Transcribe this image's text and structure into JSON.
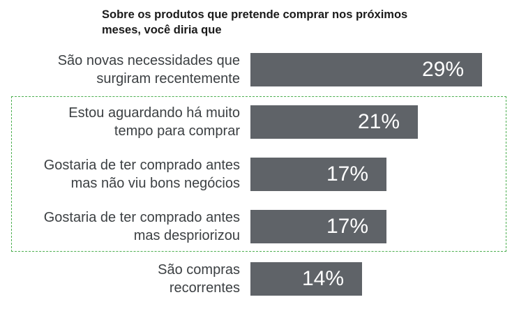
{
  "title": {
    "line1": "Sobre os produtos que pretende comprar nos próximos",
    "line2": "meses, você diria que"
  },
  "accent_colors": {
    "bar": "#5f6368",
    "highlight_border": "#4caf50"
  },
  "chart_data": {
    "type": "bar",
    "orientation": "horizontal",
    "categories": [
      [
        "São novas necessidades que",
        "surgiram recentemente"
      ],
      [
        "Estou aguardando há muito",
        "tempo para comprar"
      ],
      [
        "Gostaria de ter comprado antes",
        "mas não viu bons negócios"
      ],
      [
        "Gostaria de ter comprado antes",
        "mas despriorizou"
      ],
      [
        "São compras",
        "recorrentes"
      ]
    ],
    "values": [
      29,
      21,
      17,
      17,
      14
    ],
    "value_labels": [
      "29%",
      "21%",
      "17%",
      "17%",
      "14%"
    ],
    "unit": "%",
    "highlighted_categories": [
      1,
      2,
      3
    ],
    "grid": false,
    "legend": false
  }
}
